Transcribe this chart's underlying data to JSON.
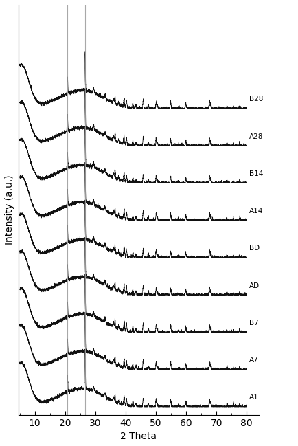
{
  "labels": [
    "A1",
    "A7",
    "B7",
    "AD",
    "BD",
    "A14",
    "B14",
    "A28",
    "B28"
  ],
  "x_min": 5,
  "x_max": 80,
  "xlabel": "2 Theta",
  "ylabel": "Intensity (a.u.)",
  "vlines": [
    20.8,
    26.6
  ],
  "vline_color": "#999999",
  "background_color": "#ffffff",
  "line_color": "#111111",
  "tick_positions": [
    10,
    20,
    30,
    40,
    50,
    60,
    70,
    80
  ],
  "figsize": [
    4.34,
    6.49
  ],
  "dpi": 100,
  "quartz_peaks": [
    20.8,
    26.6,
    36.5,
    39.5,
    40.3,
    42.4,
    45.8,
    50.1,
    54.9,
    59.9,
    67.7,
    68.2,
    73.5,
    75.6,
    77.7
  ],
  "quartz_intensities": [
    1.8,
    4.5,
    0.9,
    0.6,
    0.7,
    0.5,
    1.0,
    0.8,
    0.5,
    0.4,
    0.8,
    0.5,
    0.3,
    0.25,
    0.3
  ],
  "secondary_peaks": [
    29.4,
    33.2,
    36.0,
    37.8,
    39.5,
    43.4,
    47.5,
    50.5,
    54.9,
    57.5,
    60.0,
    68.0
  ],
  "secondary_intensities": [
    0.5,
    0.4,
    0.45,
    0.35,
    0.4,
    0.3,
    0.35,
    0.3,
    0.25,
    0.2,
    0.2,
    0.25
  ]
}
